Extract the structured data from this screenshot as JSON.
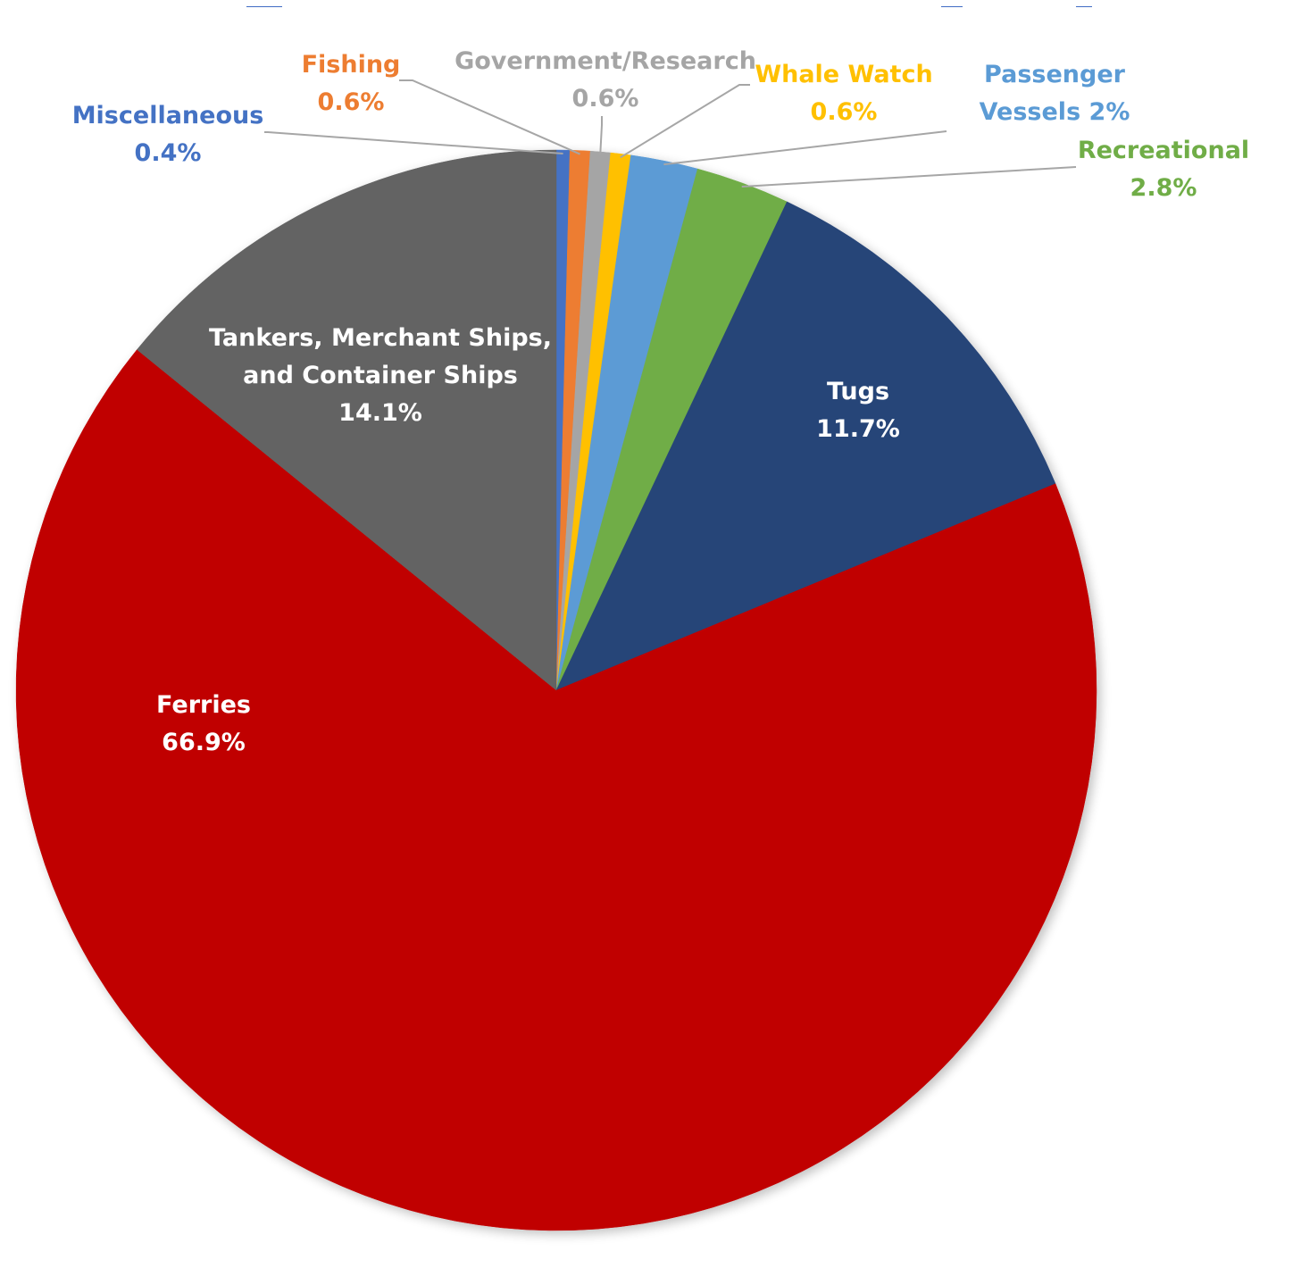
{
  "chart_data": {
    "type": "pie",
    "title": "",
    "slices": [
      {
        "label": "Miscellaneous",
        "value_text": "0.4%",
        "value": 0.4,
        "color": "#4472C4",
        "label_color": "#4472C4",
        "label_placement": "outside"
      },
      {
        "label": "Fishing",
        "value_text": "0.6%",
        "value": 0.6,
        "color": "#ED7D31",
        "label_color": "#ED7D31",
        "label_placement": "outside"
      },
      {
        "label": "Government/Research",
        "value_text": "0.6%",
        "value": 0.6,
        "color": "#A5A5A5",
        "label_color": "#A5A5A5",
        "label_placement": "outside"
      },
      {
        "label": "Whale Watch",
        "value_text": "0.6%",
        "value": 0.6,
        "color": "#FFC000",
        "label_color": "#FFC000",
        "label_placement": "outside"
      },
      {
        "label": "Passenger Vessels",
        "value_text": "2%",
        "value": 2.0,
        "color": "#5B9BD5",
        "label_color": "#5B9BD5",
        "label_placement": "outside"
      },
      {
        "label": "Recreational",
        "value_text": "2.8%",
        "value": 2.8,
        "color": "#70AD47",
        "label_color": "#70AD47",
        "label_placement": "outside"
      },
      {
        "label": "Tugs",
        "value_text": "11.7%",
        "value": 11.7,
        "color": "#264478",
        "label_color": "#FFFFFF",
        "label_placement": "inside"
      },
      {
        "label": "Ferries",
        "value_text": "66.9%",
        "value": 66.9,
        "color": "#C00000",
        "label_color": "#FFFFFF",
        "label_placement": "inside"
      },
      {
        "label": "Tankers, Merchant Ships, and Container Ships",
        "value_text": "14.1%",
        "value": 14.1,
        "color": "#636363",
        "label_color": "#FFFFFF",
        "label_placement": "inside"
      }
    ],
    "start_angle": "12 o'clock",
    "direction": "clockwise",
    "leader_line_color": "#A6A6A6",
    "title_color": "#4472C4"
  }
}
